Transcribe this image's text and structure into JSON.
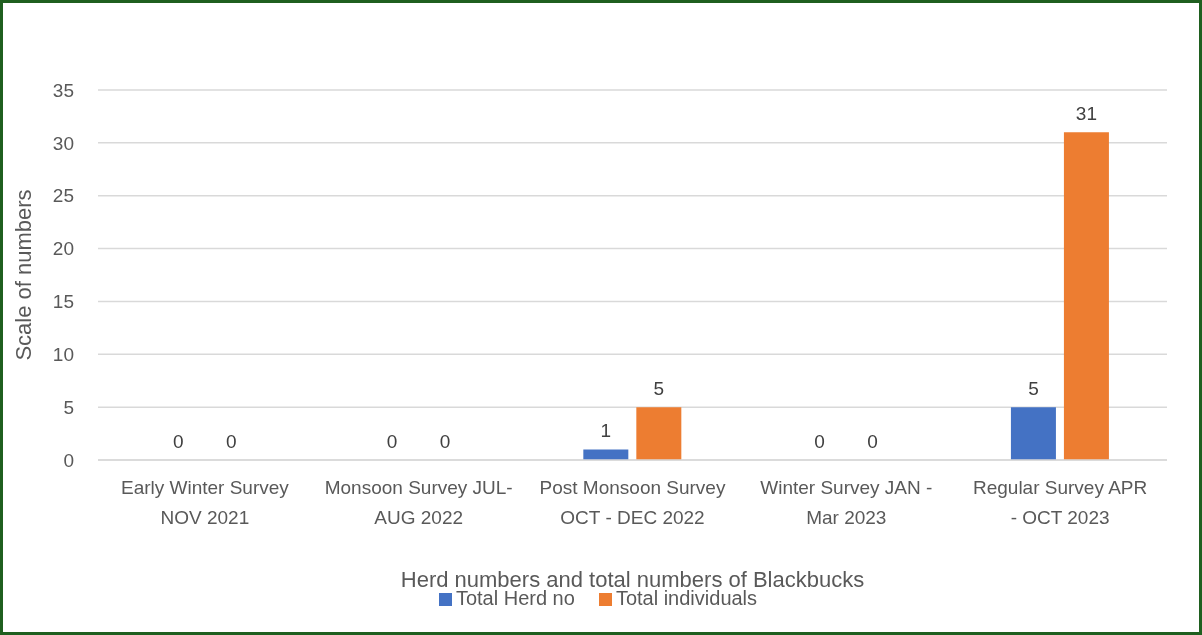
{
  "chart_data": {
    "type": "bar",
    "xlabel": "Herd numbers and total numbers of Blackbucks",
    "ylabel": "Scale of numbers",
    "categories": [
      "Early Winter Survey NOV 2021",
      "Monsoon Survey JUL- AUG 2022",
      "Post Monsoon Survey OCT - DEC 2022",
      "Winter Survey JAN - Mar 2023",
      "Regular Survey APR - OCT 2023"
    ],
    "series": [
      {
        "name": "Total Herd no",
        "color": "#4472c4",
        "values": [
          0,
          0,
          1,
          0,
          5
        ]
      },
      {
        "name": "Total individuals",
        "color": "#ed7d31",
        "values": [
          0,
          0,
          5,
          0,
          31
        ]
      }
    ],
    "ylim": [
      0,
      35
    ],
    "yticks": [
      0,
      5,
      10,
      15,
      20,
      25,
      30,
      35
    ],
    "grid": "y",
    "legend": "bottom",
    "data_labels": true
  }
}
